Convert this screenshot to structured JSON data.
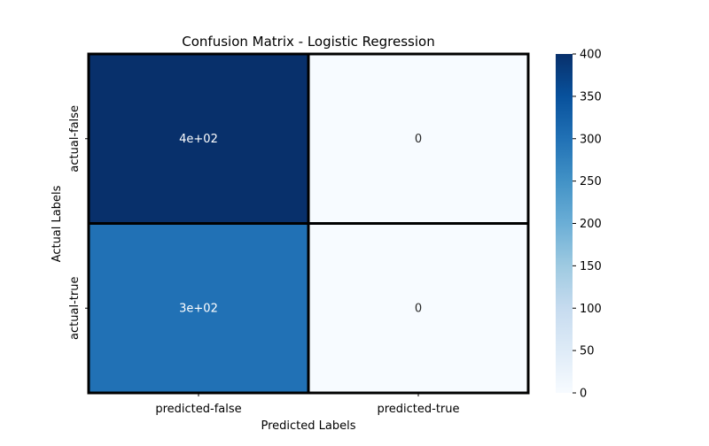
{
  "chart_data": {
    "type": "heatmap",
    "title": "Confusion Matrix - Logistic Regression",
    "xlabel": "Predicted Labels",
    "ylabel": "Actual Labels",
    "x_categories": [
      "predicted-false",
      "predicted-true"
    ],
    "y_categories": [
      "actual-false",
      "actual-true"
    ],
    "values": [
      [
        400,
        0
      ],
      [
        300,
        0
      ]
    ],
    "annotations": [
      [
        "4e+02",
        "0"
      ],
      [
        "3e+02",
        "0"
      ]
    ],
    "colorbar": {
      "range": [
        0,
        400
      ],
      "ticks": [
        "0",
        "50",
        "100",
        "150",
        "200",
        "250",
        "300",
        "350",
        "400"
      ],
      "colormap": "Blues",
      "colors": [
        "#f7fbff",
        "#deebf7",
        "#c6dbef",
        "#9ecae1",
        "#6baed6",
        "#4292c6",
        "#2171b5",
        "#08519c",
        "#08306b"
      ]
    },
    "cell_border_color": "#000000",
    "grid": false
  }
}
